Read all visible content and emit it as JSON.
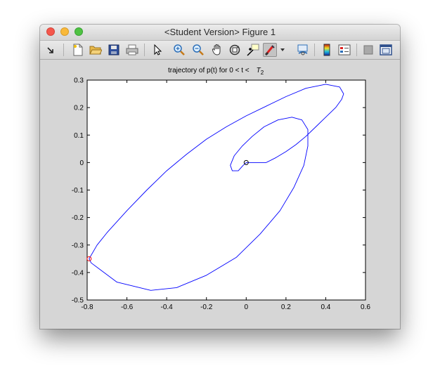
{
  "window": {
    "title": "<Student Version> Figure 1"
  },
  "toolbar": {
    "buttons": [
      {
        "name": "dock-arrow",
        "icon": "dock-arrow-icon"
      },
      {
        "name": "new-figure",
        "icon": "new-file-icon"
      },
      {
        "name": "open-file",
        "icon": "open-folder-icon"
      },
      {
        "name": "save-figure",
        "icon": "save-disk-icon"
      },
      {
        "name": "print-figure",
        "icon": "printer-icon"
      },
      {
        "name": "edit-plot",
        "icon": "pointer-arrow-icon"
      },
      {
        "name": "zoom-in",
        "icon": "zoom-in-icon"
      },
      {
        "name": "zoom-out",
        "icon": "zoom-out-icon"
      },
      {
        "name": "pan",
        "icon": "hand-pan-icon"
      },
      {
        "name": "rotate-3d",
        "icon": "rotate-3d-icon"
      },
      {
        "name": "data-cursor",
        "icon": "data-cursor-icon"
      },
      {
        "name": "brush",
        "icon": "brush-icon"
      },
      {
        "name": "brush-menu",
        "icon": "chevron-down-icon"
      },
      {
        "name": "link-plot",
        "icon": "link-plot-icon"
      },
      {
        "name": "insert-colorbar",
        "icon": "colorbar-icon"
      },
      {
        "name": "insert-legend",
        "icon": "legend-icon"
      },
      {
        "name": "hide-plot-tools",
        "icon": "hide-tools-icon"
      },
      {
        "name": "show-plot-tools",
        "icon": "show-tools-icon"
      }
    ]
  },
  "chart_data": {
    "type": "line",
    "title": "trajectory of p(t) for 0 < t <",
    "title_symbol": "T",
    "title_subscript": "2",
    "xlabel": "",
    "ylabel": "",
    "xlim": [
      -0.8,
      0.6
    ],
    "ylim": [
      -0.5,
      0.3
    ],
    "xticks": [
      -0.8,
      -0.6,
      -0.4,
      -0.2,
      0,
      0.2,
      0.4,
      0.6
    ],
    "xtick_labels": [
      "-0.8",
      "-0.6",
      "-0.4",
      "-0.2",
      "0",
      "0.2",
      "0.4",
      "0.6"
    ],
    "yticks": [
      0.3,
      0.2,
      0.1,
      0,
      -0.1,
      -0.2,
      -0.3,
      -0.4,
      -0.5
    ],
    "ytick_labels": [
      "0.3",
      "0.2",
      "0.1",
      "0",
      "-0.1",
      "-0.2",
      "-0.3",
      "-0.4",
      "-0.5"
    ],
    "grid": false,
    "series": [
      {
        "color": "#0000ff",
        "x": [
          0.0,
          0.03,
          0.1,
          0.15,
          0.2,
          0.25,
          0.3,
          0.35,
          0.4,
          0.45,
          0.48,
          0.49,
          0.47,
          0.4,
          0.3,
          0.2,
          0.1,
          0.0,
          -0.1,
          -0.2,
          -0.3,
          -0.4,
          -0.5,
          -0.6,
          -0.7,
          -0.75,
          -0.79,
          -0.78,
          -0.65,
          -0.48,
          -0.35,
          -0.2,
          -0.05,
          0.07,
          0.17,
          0.24,
          0.29,
          0.31,
          0.31,
          0.28,
          0.23,
          0.16,
          0.09,
          0.03,
          -0.02,
          -0.06,
          -0.08,
          -0.07,
          -0.04,
          -0.015,
          0.0
        ],
        "y": [
          0.0,
          0.0,
          0.0,
          0.018,
          0.04,
          0.065,
          0.095,
          0.13,
          0.165,
          0.2,
          0.23,
          0.25,
          0.275,
          0.285,
          0.27,
          0.24,
          0.205,
          0.17,
          0.13,
          0.085,
          0.03,
          -0.03,
          -0.1,
          -0.175,
          -0.255,
          -0.3,
          -0.35,
          -0.365,
          -0.435,
          -0.465,
          -0.455,
          -0.41,
          -0.345,
          -0.26,
          -0.175,
          -0.09,
          -0.01,
          0.06,
          0.12,
          0.155,
          0.165,
          0.155,
          0.13,
          0.095,
          0.06,
          0.025,
          -0.01,
          -0.03,
          -0.03,
          -0.01,
          0.0
        ]
      }
    ],
    "markers": [
      {
        "name": "start-point",
        "x": 0.0,
        "y": 0.0,
        "color": "#000000"
      },
      {
        "name": "end-point",
        "x": -0.79,
        "y": -0.35,
        "color": "#ff0000"
      }
    ]
  }
}
